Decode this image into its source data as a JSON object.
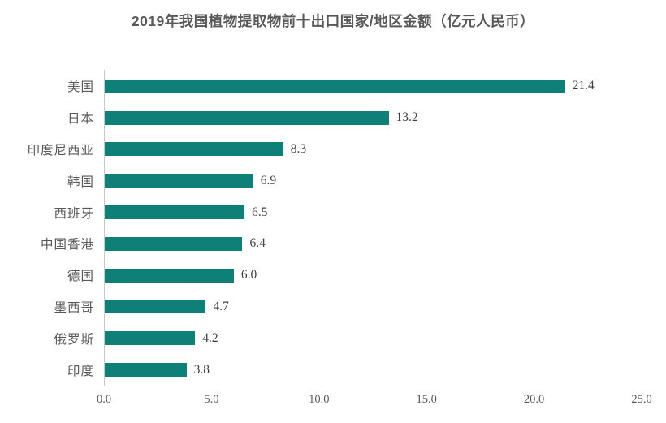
{
  "title": "2019年我国植物提取物前十出口国家/地区金额（亿元人民币）",
  "colors": {
    "bar": "#0f8078",
    "title_text": "#595959",
    "category_text": "#595959",
    "value_text": "#3f3f3f",
    "axis_line": "#c9c9c9",
    "background": "#ffffff"
  },
  "chart_data": {
    "type": "bar",
    "orientation": "horizontal",
    "title": "2019年我国植物提取物前十出口国家/地区金额（亿元人民币）",
    "categories": [
      "美国",
      "日本",
      "印度尼西亚",
      "韩国",
      "西班牙",
      "中国香港",
      "德国",
      "墨西哥",
      "俄罗斯",
      "印度"
    ],
    "values": [
      21.4,
      13.2,
      8.3,
      6.9,
      6.5,
      6.4,
      6.0,
      4.7,
      4.2,
      3.8
    ],
    "value_labels": [
      "21.4",
      "13.2",
      "8.3",
      "6.9",
      "6.5",
      "6.4",
      "6.0",
      "4.7",
      "4.2",
      "3.8"
    ],
    "xlabel": "",
    "ylabel": "",
    "xlim": [
      0,
      25
    ],
    "x_ticks": [
      0,
      5,
      10,
      15,
      20,
      25
    ],
    "x_tick_labels": [
      "0.0",
      "5.0",
      "10.0",
      "15.0",
      "20.0",
      "25.0"
    ],
    "grid": false,
    "legend": null,
    "data_labels": true
  }
}
